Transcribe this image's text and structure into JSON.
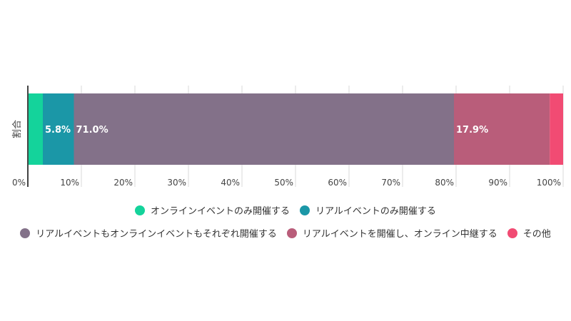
{
  "chart_data": {
    "type": "bar",
    "orientation": "horizontal-stacked",
    "categories": [
      "割合"
    ],
    "series": [
      {
        "name": "オンラインイベントのみ開催する",
        "values": [
          2.8
        ],
        "color": "#14d39b",
        "label": ""
      },
      {
        "name": "リアルイベントのみ開催する",
        "values": [
          5.8
        ],
        "color": "#1b97a7",
        "label": "5.8%"
      },
      {
        "name": "リアルイベントもオンラインイベントもそれぞれ開催する",
        "values": [
          71.0
        ],
        "color": "#837189",
        "label": "71.0%"
      },
      {
        "name": "リアルイベントを開催し、オンライン中継する",
        "values": [
          17.9
        ],
        "color": "#b95d7a",
        "label": "17.9%"
      },
      {
        "name": "その他",
        "values": [
          2.5
        ],
        "color": "#f14b73",
        "label": ""
      }
    ],
    "xlim": [
      0,
      100
    ],
    "x_ticks": [
      "0%",
      "10%",
      "20%",
      "30%",
      "40%",
      "50%",
      "60%",
      "70%",
      "80%",
      "90%",
      "100%"
    ],
    "grid": true,
    "legend_position": "bottom"
  }
}
